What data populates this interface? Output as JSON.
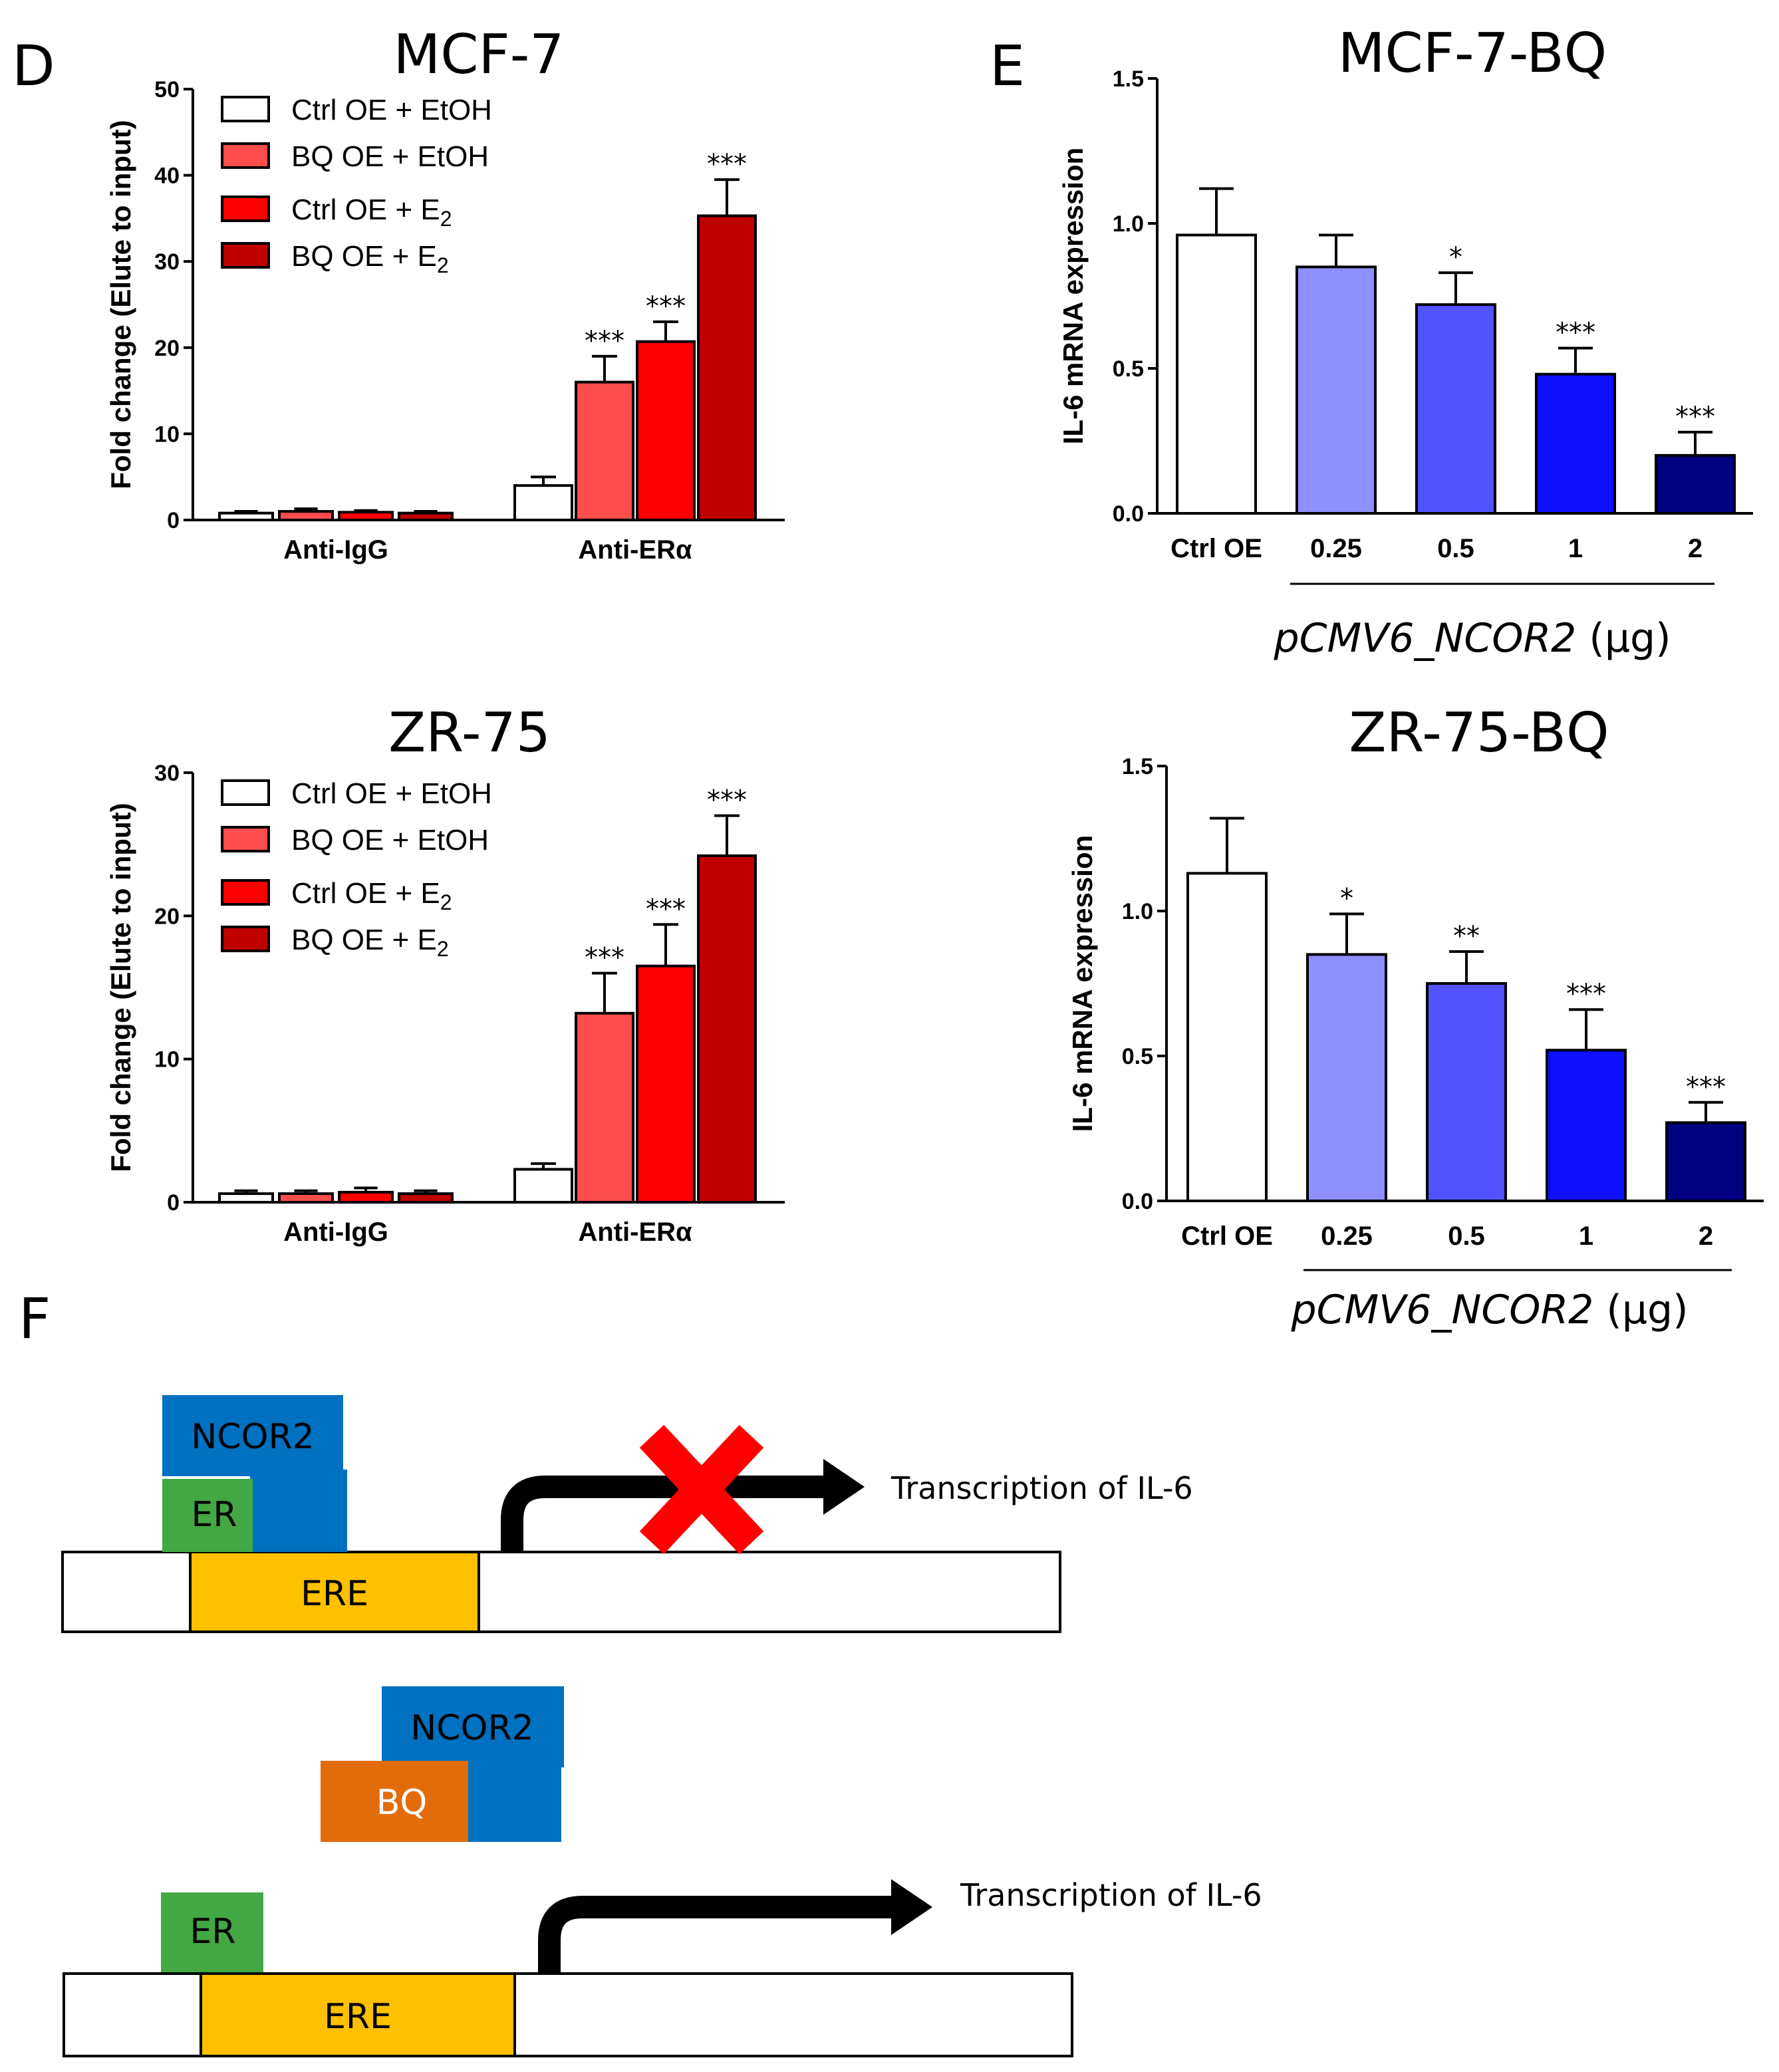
{
  "panels": {
    "D": "D",
    "E": "E",
    "F": "F"
  },
  "colors": {
    "white": "#ffffff",
    "bq_etoh": "#ff4d4d",
    "ctrl_e2": "#ff0000",
    "bq_e2": "#c00000",
    "blue_025": "#8f8fff",
    "blue_05": "#5252ff",
    "blue_1": "#0f0fff",
    "blue_2": "#000080",
    "ncor2": "#0070c0",
    "er": "#43a843",
    "ere": "#ffc000",
    "bq": "#e36c0a",
    "cross": "#ff0000"
  },
  "legend": [
    {
      "label": "Ctrl OE + EtOH",
      "sub": "",
      "color": "#ffffff"
    },
    {
      "label": "BQ OE + EtOH",
      "sub": "",
      "color": "#ff4d4d"
    },
    {
      "label": "Ctrl OE + E",
      "sub": "2",
      "color": "#ff0000"
    },
    {
      "label": "BQ OE + E",
      "sub": "2",
      "color": "#c00000"
    }
  ],
  "chart_data": [
    {
      "id": "d_mcf7",
      "type": "bar",
      "title": "MCF-7",
      "ylabel": "Fold change (Elute to input)",
      "ylim": [
        0,
        50
      ],
      "yticks": [
        "0",
        "10",
        "20",
        "30",
        "40",
        "50"
      ],
      "yticks_values": [
        0,
        10,
        20,
        30,
        40,
        50
      ],
      "categories": [
        "Anti-IgG",
        "Anti-ERα"
      ],
      "series": [
        {
          "name": "Ctrl OE + EtOH",
          "values": [
            0.8,
            4.0
          ],
          "errors": [
            0.2,
            1.0
          ],
          "stars": [
            "",
            ""
          ]
        },
        {
          "name": "BQ OE + EtOH",
          "values": [
            1.0,
            16.0
          ],
          "errors": [
            0.3,
            3.0
          ],
          "stars": [
            "",
            "***"
          ]
        },
        {
          "name": "Ctrl OE + E2",
          "values": [
            0.9,
            20.7
          ],
          "errors": [
            0.2,
            2.3
          ],
          "stars": [
            "",
            "***"
          ]
        },
        {
          "name": "BQ OE + E2",
          "values": [
            0.8,
            35.3
          ],
          "errors": [
            0.2,
            4.2
          ],
          "stars": [
            "",
            "***"
          ]
        }
      ]
    },
    {
      "id": "d_zr75",
      "type": "bar",
      "title": "ZR-75",
      "ylabel": "Fold change (Elute to input)",
      "ylim": [
        0,
        30
      ],
      "yticks": [
        "0",
        "10",
        "20",
        "30"
      ],
      "yticks_values": [
        0,
        10,
        20,
        30
      ],
      "categories": [
        "Anti-IgG",
        "Anti-ERα"
      ],
      "series": [
        {
          "name": "Ctrl OE + EtOH",
          "values": [
            0.6,
            2.3
          ],
          "errors": [
            0.2,
            0.4
          ],
          "stars": [
            "",
            ""
          ]
        },
        {
          "name": "BQ OE + EtOH",
          "values": [
            0.6,
            13.2
          ],
          "errors": [
            0.2,
            2.8
          ],
          "stars": [
            "",
            "***"
          ]
        },
        {
          "name": "Ctrl OE + E2",
          "values": [
            0.7,
            16.5
          ],
          "errors": [
            0.3,
            2.9
          ],
          "stars": [
            "",
            "***"
          ]
        },
        {
          "name": "BQ OE + E2",
          "values": [
            0.6,
            24.2
          ],
          "errors": [
            0.2,
            2.8
          ],
          "stars": [
            "",
            "***"
          ]
        }
      ]
    },
    {
      "id": "e_mcf7bq",
      "type": "bar",
      "title": "MCF-7-BQ",
      "ylabel": "IL-6 mRNA expression",
      "ylim": [
        0,
        1.5
      ],
      "yticks": [
        "0.0",
        "0.5",
        "1.0",
        "1.5"
      ],
      "yticks_values": [
        0,
        0.5,
        1.0,
        1.5
      ],
      "categories": [
        "Ctrl OE",
        "0.25",
        "0.5",
        "1",
        "2"
      ],
      "values": [
        0.96,
        0.85,
        0.72,
        0.48,
        0.2
      ],
      "errors": [
        0.16,
        0.11,
        0.11,
        0.09,
        0.08
      ],
      "stars": [
        "",
        "",
        "*",
        "***",
        "***"
      ],
      "bar_colors": [
        "#ffffff",
        "#8f8fff",
        "#5252ff",
        "#0f0fff",
        "#000080"
      ],
      "xtitle_italic": "pCMV6_NCOR2",
      "xtitle_unit": " (µg)"
    },
    {
      "id": "e_zr75bq",
      "type": "bar",
      "title": "ZR-75-BQ",
      "ylabel": "IL-6 mRNA expression",
      "ylim": [
        0,
        1.5
      ],
      "yticks": [
        "0.0",
        "0.5",
        "1.0",
        "1.5"
      ],
      "yticks_values": [
        0,
        0.5,
        1.0,
        1.5
      ],
      "categories": [
        "Ctrl OE",
        "0.25",
        "0.5",
        "1",
        "2"
      ],
      "values": [
        1.13,
        0.85,
        0.75,
        0.52,
        0.27
      ],
      "errors": [
        0.19,
        0.14,
        0.11,
        0.14,
        0.07
      ],
      "stars": [
        "",
        "*",
        "**",
        "***",
        "***"
      ],
      "bar_colors": [
        "#ffffff",
        "#8f8fff",
        "#5252ff",
        "#0f0fff",
        "#000080"
      ],
      "xtitle_italic": "pCMV6_NCOR2",
      "xtitle_unit": " (µg)"
    }
  ],
  "diagram": {
    "top": {
      "ncor2": "NCOR2",
      "er": "ER",
      "ere": "ERE",
      "transcription": "Transcription of IL-6"
    },
    "bottom": {
      "ncor2": "NCOR2",
      "bq": "BQ",
      "er": "ER",
      "ere": "ERE",
      "transcription": "Transcription of IL-6"
    }
  }
}
